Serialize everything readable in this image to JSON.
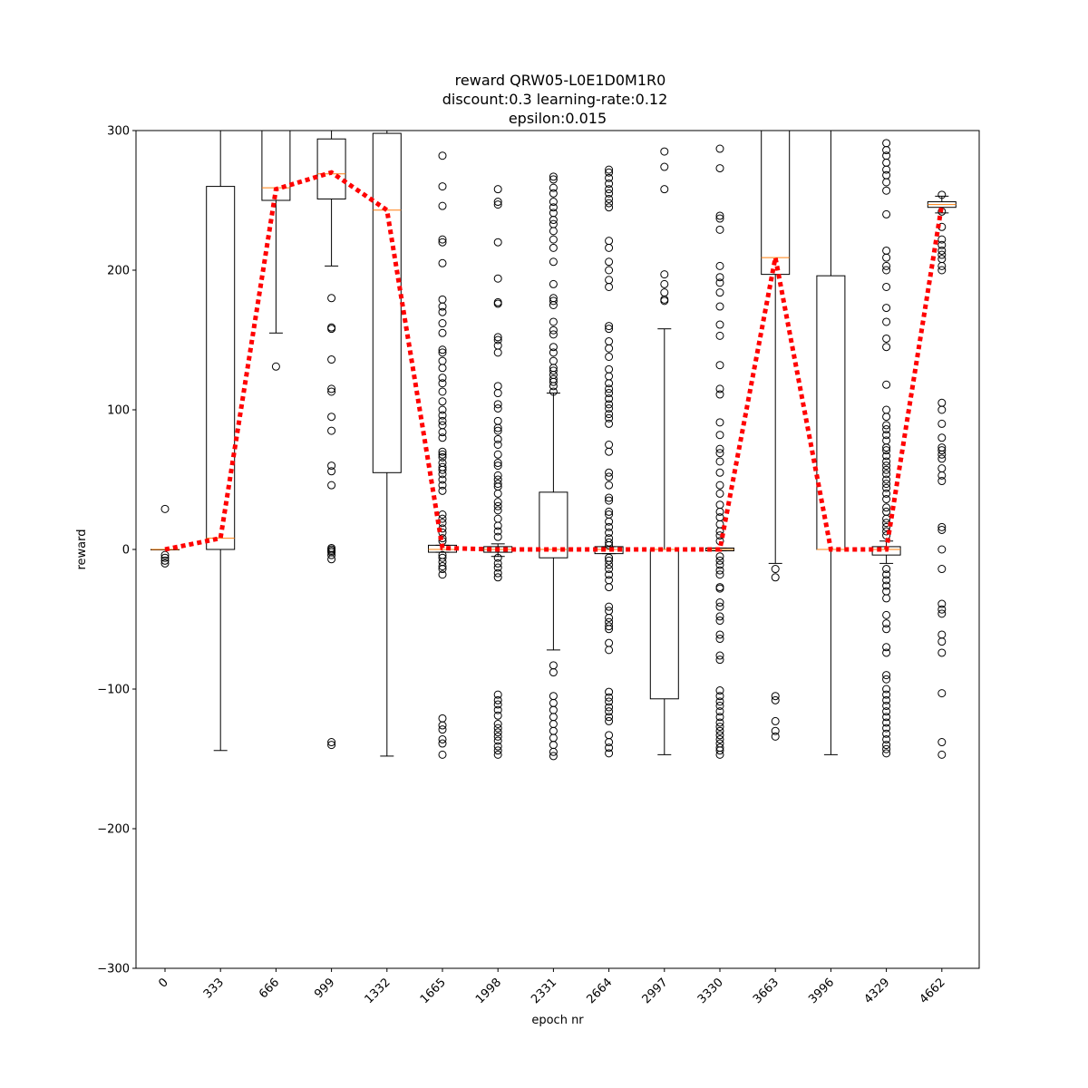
{
  "chart_data": {
    "type": "box",
    "title": [
      "reward QRW05-L0E1D0M1R0",
      "discount:0.3 learning-rate:0.12",
      "epsilon:0.015"
    ],
    "xlabel": "epoch nr",
    "ylabel": "reward",
    "ylim": [
      -300,
      300
    ],
    "yticks": [
      -300,
      -200,
      -100,
      0,
      100,
      200,
      300
    ],
    "ytick_labels": [
      "−300",
      "−200",
      "−100",
      "0",
      "100",
      "200",
      "300"
    ],
    "categories": [
      "0",
      "333",
      "666",
      "999",
      "1332",
      "1665",
      "1998",
      "2331",
      "2664",
      "2997",
      "3330",
      "3663",
      "3996",
      "4329",
      "4662"
    ],
    "boxes": [
      {
        "q1": 0,
        "q3": 0,
        "median": 0,
        "wlo": 0,
        "whi": 0
      },
      {
        "q1": 0,
        "q3": 260,
        "median": 8,
        "wlo": -144,
        "whi": 300
      },
      {
        "q1": 250,
        "q3": 300,
        "median": 259,
        "wlo": 155,
        "whi": 300
      },
      {
        "q1": 251,
        "q3": 294,
        "median": 269,
        "wlo": 203,
        "whi": 300
      },
      {
        "q1": 55,
        "q3": 298,
        "median": 243,
        "wlo": -148,
        "whi": 300
      },
      {
        "q1": -2,
        "q3": 3,
        "median": 0,
        "wlo": -2,
        "whi": 3
      },
      {
        "q1": -2,
        "q3": 2,
        "median": 0,
        "wlo": -5,
        "whi": 4
      },
      {
        "q1": -6,
        "q3": 41,
        "median": 0,
        "wlo": -72,
        "whi": 112
      },
      {
        "q1": -3,
        "q3": 2,
        "median": 0,
        "wlo": -3,
        "whi": 2
      },
      {
        "q1": -107,
        "q3": 0,
        "median": 0,
        "wlo": -147,
        "whi": 158
      },
      {
        "q1": -1,
        "q3": 1,
        "median": 0,
        "wlo": -1,
        "whi": 1
      },
      {
        "q1": 197,
        "q3": 300,
        "median": 209,
        "wlo": -10,
        "whi": 300
      },
      {
        "q1": 0,
        "q3": 196,
        "median": 0,
        "wlo": -147,
        "whi": 300
      },
      {
        "q1": -4,
        "q3": 2,
        "median": 0,
        "wlo": -10,
        "whi": 6
      },
      {
        "q1": 245,
        "q3": 249,
        "median": 247,
        "wlo": 241,
        "whi": 253
      }
    ],
    "outliers": [
      [
        29,
        -4,
        -6,
        -8,
        -10
      ],
      [],
      [
        131
      ],
      [
        180,
        159,
        158,
        136,
        115,
        113,
        95,
        85,
        60,
        56,
        46,
        1,
        0,
        -1,
        -2,
        -4,
        -7,
        -138,
        -140
      ],
      [],
      [
        282,
        260,
        246,
        222,
        220,
        205,
        179,
        174,
        170,
        162,
        155,
        143,
        141,
        135,
        130,
        123,
        119,
        113,
        106,
        100,
        96,
        92,
        89,
        84,
        80,
        70,
        68,
        66,
        62,
        59,
        57,
        54,
        50,
        46,
        42,
        25,
        22,
        19,
        15,
        12,
        8,
        6,
        -4,
        -6,
        -9,
        -12,
        -14,
        -18,
        -121,
        -126,
        -129,
        -136,
        -139,
        -147
      ],
      [
        258,
        249,
        247,
        220,
        194,
        177,
        176,
        152,
        150,
        146,
        141,
        117,
        112,
        104,
        101,
        92,
        87,
        85,
        79,
        75,
        68,
        62,
        60,
        53,
        50,
        47,
        45,
        40,
        34,
        31,
        28,
        22,
        17,
        13,
        9,
        -6,
        -10,
        -13,
        -17,
        -20,
        -104,
        -108,
        -111,
        -115,
        -119,
        -125,
        -128,
        -131,
        -134,
        -137,
        -141,
        -144,
        -147
      ],
      [
        267,
        265,
        259,
        255,
        249,
        245,
        241,
        236,
        233,
        228,
        222,
        216,
        206,
        190,
        180,
        178,
        175,
        163,
        157,
        154,
        145,
        141,
        135,
        130,
        128,
        125,
        122,
        120,
        117,
        113,
        -83,
        -88,
        -105,
        -110,
        -115,
        -120,
        -125,
        -130,
        -135,
        -140,
        -145,
        -148
      ],
      [
        272,
        270,
        266,
        262,
        258,
        255,
        251,
        248,
        245,
        221,
        216,
        206,
        200,
        193,
        188,
        160,
        158,
        149,
        144,
        138,
        129,
        124,
        119,
        115,
        112,
        108,
        104,
        101,
        97,
        94,
        90,
        75,
        70,
        55,
        52,
        46,
        37,
        35,
        27,
        25,
        20,
        16,
        12,
        8,
        5,
        3,
        -6,
        -8,
        -11,
        -14,
        -18,
        -22,
        -27,
        -41,
        -44,
        -49,
        -52,
        -55,
        -57,
        -67,
        -72,
        -102,
        -106,
        -109,
        -113,
        -116,
        -120,
        -123,
        -133,
        -138,
        -142,
        -146
      ],
      [
        285,
        274,
        258,
        197,
        190,
        184,
        179,
        178
      ],
      [
        287,
        273,
        239,
        237,
        229,
        203,
        195,
        191,
        184,
        174,
        161,
        153,
        132,
        115,
        111,
        91,
        82,
        72,
        69,
        63,
        55,
        46,
        40,
        32,
        27,
        23,
        18,
        13,
        10,
        6,
        -5,
        -8,
        -11,
        -15,
        -18,
        -27,
        -28,
        -38,
        -41,
        -48,
        -51,
        -61,
        -64,
        -76,
        -79,
        -101,
        -105,
        -109,
        -112,
        -116,
        -120,
        -124,
        -127,
        -130,
        -133,
        -136,
        -139,
        -142,
        -144,
        -147
      ],
      [
        -14,
        -20,
        -105,
        -108,
        -123,
        -130,
        -134
      ],
      [],
      [
        291,
        286,
        282,
        277,
        272,
        268,
        263,
        257,
        240,
        214,
        209,
        203,
        200,
        188,
        173,
        163,
        151,
        145,
        118,
        100,
        95,
        89,
        86,
        82,
        78,
        73,
        71,
        67,
        63,
        60,
        57,
        54,
        50,
        47,
        44,
        40,
        36,
        30,
        27,
        22,
        19,
        16,
        13,
        10,
        -14,
        -18,
        -22,
        -26,
        -30,
        -35,
        -47,
        -53,
        -57,
        -70,
        -74,
        -90,
        -93,
        -100,
        -104,
        -108,
        -112,
        -116,
        -120,
        -124,
        -128,
        -132,
        -136,
        -140,
        -143,
        -146
      ],
      [
        254,
        242,
        231,
        222,
        218,
        214,
        211,
        208,
        203,
        200,
        105,
        100,
        90,
        80,
        73,
        71,
        68,
        65,
        58,
        53,
        49,
        16,
        14,
        0,
        -14,
        -39,
        -43,
        -46,
        -61,
        -66,
        -74,
        -103,
        -138,
        -147
      ]
    ],
    "mean_line": {
      "color": "#ff0000",
      "style": "dotted",
      "values": [
        0,
        8,
        258,
        270,
        243,
        1,
        0,
        0,
        0,
        0,
        0,
        209,
        0,
        0,
        247
      ]
    },
    "median_color": "#ff7f0e",
    "box_color": "#000000",
    "grid": false,
    "legend": "none"
  }
}
